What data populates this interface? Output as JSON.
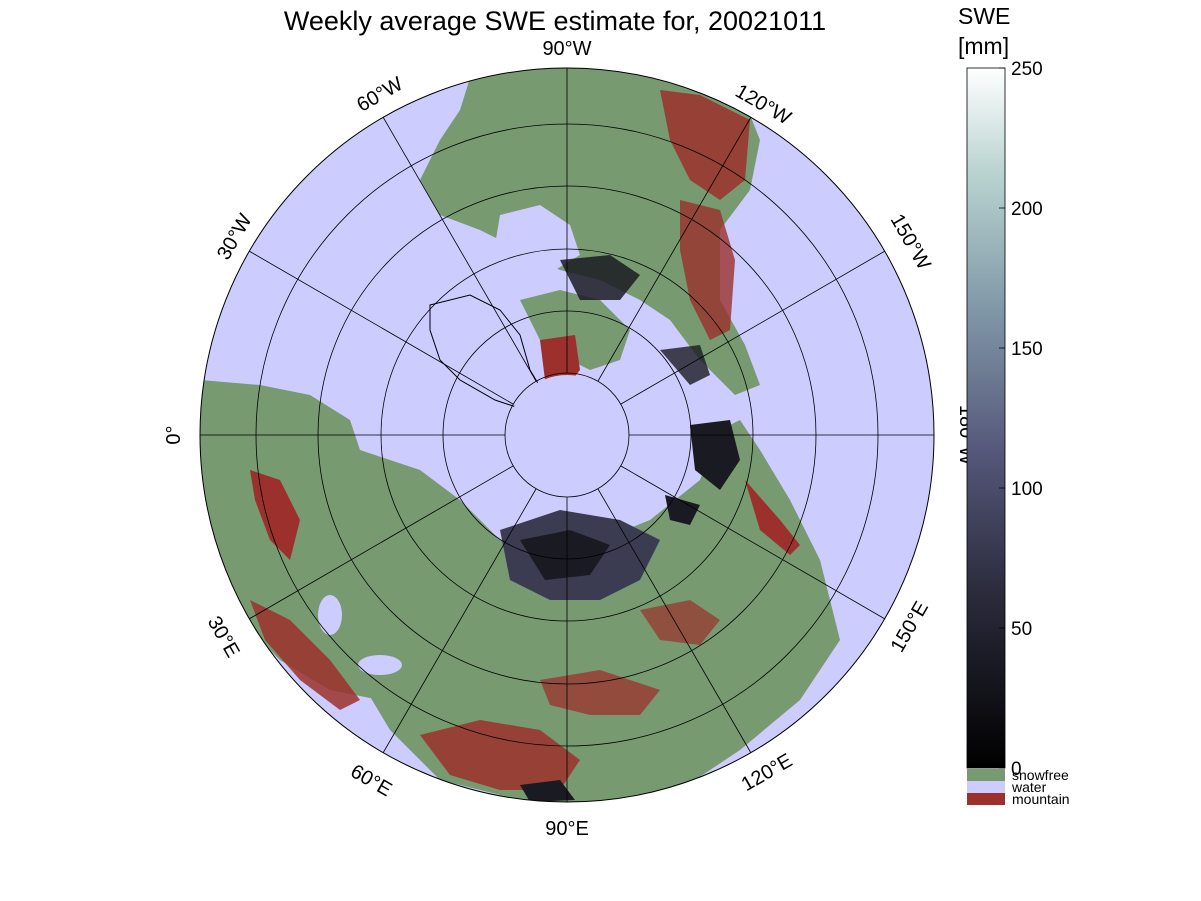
{
  "title": "Weekly average SWE estimate for, 20021011",
  "colorbar": {
    "title_line1": "SWE",
    "title_line2": "[mm]",
    "ticks": [
      "0",
      "50",
      "100",
      "150",
      "200",
      "250"
    ],
    "tick_values": [
      0,
      50,
      100,
      150,
      200,
      250
    ],
    "range": [
      0,
      250
    ],
    "categories": [
      {
        "label": "snowfree",
        "color": "#779a71"
      },
      {
        "label": "water",
        "color": "#ccccff"
      },
      {
        "label": "mountain",
        "color": "#9b302c"
      }
    ]
  },
  "longitude_labels": {
    "lon_90W": "90°W",
    "lon_120W": "120°W",
    "lon_150W": "150°W",
    "lon_180W": "180°W",
    "lon_150E": "150°E",
    "lon_120E": "120°E",
    "lon_90E": "90°E",
    "lon_60E": "60°E",
    "lon_30E": "30°E",
    "lon_0": "0°",
    "lon_30W": "30°W",
    "lon_60W": "60°W"
  },
  "colors": {
    "water": "#ccccff",
    "snowfree": "#779a71",
    "mountain": "#9b302c",
    "snow_dark": "#1a1a22",
    "snow_mid": "#3b3b52",
    "background": "#ffffff"
  }
}
